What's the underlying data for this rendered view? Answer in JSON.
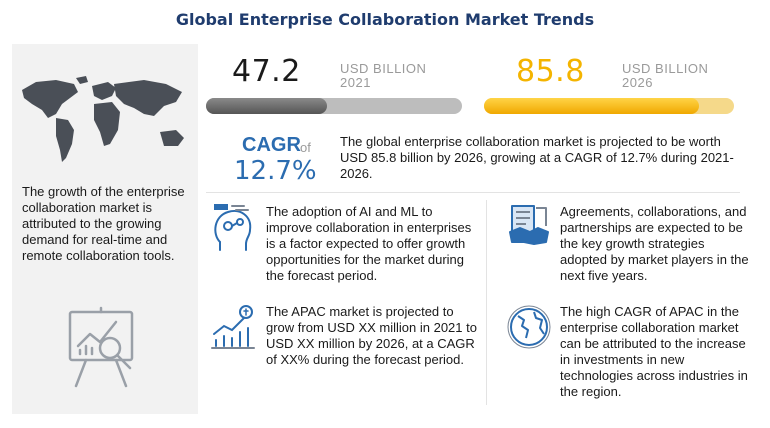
{
  "title": "Global Enterprise Collaboration Market Trends",
  "left_panel": {
    "text": "The growth of the enterprise collaboration market is attributed to the growing demand for real-time and remote collaboration tools."
  },
  "kpis": [
    {
      "value": "47.2",
      "unit_line1": "USD BILLION",
      "unit_line2": "2021",
      "color": "#1a1a1a"
    },
    {
      "value": "85.8",
      "unit_line1": "USD BILLION",
      "unit_line2": "2026",
      "color": "#f4b400"
    }
  ],
  "cagr": {
    "label": "CAGR",
    "of": "of",
    "value": "12.7%"
  },
  "summary": "The global enterprise collaboration market is projected to be worth USD 85.8 billion by 2026, growing at a CAGR of 12.7% during 2021-2026.",
  "points": [
    {
      "text": "The adoption of AI and ML to improve collaboration in enterprises is a factor expected to offer growth opportunities for the market during the forecast period.",
      "icon": "ai-brain-icon"
    },
    {
      "text": "The APAC market is projected to grow from USD XX million in 2021 to USD XX million by 2026, at a CAGR of XX% during the forecast period.",
      "icon": "growth-chart-icon"
    },
    {
      "text": "Agreements, collaborations, and partnerships are expected to be the key growth strategies adopted by market players in the next five years.",
      "icon": "handshake-icon"
    },
    {
      "text": "The high CAGR of APAC in the enterprise collaboration market can be attributed to the increase in investments in new technologies across industries in the region.",
      "icon": "globe-icon"
    }
  ],
  "chart_data": {
    "type": "bar",
    "categories": [
      "2021",
      "2026"
    ],
    "values": [
      47.2,
      85.8
    ],
    "unit": "USD BILLION",
    "cagr": "12.7%"
  }
}
